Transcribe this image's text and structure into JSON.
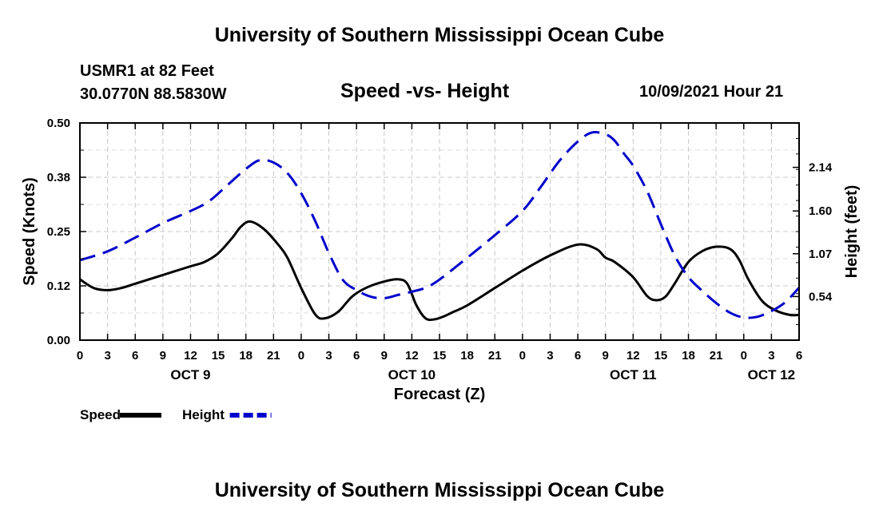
{
  "page": {
    "top_title": "University of Southern Mississippi Ocean Cube",
    "station_name": "USMR1 at 82 Feet",
    "station_coords": "30.0770N  88.5830W",
    "subtitle": "Speed -vs- Height",
    "datetime": "10/09/2021 Hour 21",
    "bottom_title": "University of Southern Mississippi Ocean Cube"
  },
  "chart_data": {
    "type": "line",
    "title": "Speed -vs- Height",
    "xlabel": "Forecast (Z)",
    "ylabel": "Speed (Knots)",
    "y2label": "Height (feet)",
    "xlim": [
      0,
      78
    ],
    "ylim": [
      0,
      0.5
    ],
    "y2lim": [
      0,
      2.69
    ],
    "x_ticks": [
      0,
      3,
      6,
      9,
      12,
      15,
      18,
      21,
      24,
      27,
      30,
      33,
      36,
      39,
      42,
      45,
      48,
      51,
      54,
      57,
      60,
      63,
      66,
      69,
      72,
      75,
      78
    ],
    "x_tick_labels": [
      "0",
      "3",
      "6",
      "9",
      "12",
      "15",
      "18",
      "21",
      "0",
      "3",
      "6",
      "9",
      "12",
      "15",
      "18",
      "21",
      "0",
      "3",
      "6",
      "9",
      "12",
      "15",
      "18",
      "21",
      "0",
      "3",
      "6"
    ],
    "day_labels": [
      {
        "x": 12,
        "label": "OCT 9"
      },
      {
        "x": 36,
        "label": "OCT 10"
      },
      {
        "x": 60,
        "label": "OCT 11"
      },
      {
        "x": 75,
        "label": "OCT 12"
      }
    ],
    "y_ticks": [
      0,
      0.125,
      0.25,
      0.375,
      0.5
    ],
    "y_tick_labels": [
      "0.00",
      "0.12",
      "0.25",
      "0.38",
      "0.50"
    ],
    "y2_ticks": [
      0.54,
      1.07,
      1.6,
      2.14
    ],
    "y2_tick_labels": [
      "0.54",
      "1.07",
      "1.60",
      "2.14"
    ],
    "grid": true,
    "series": [
      {
        "name": "Speed",
        "axis": "left",
        "color": "#000000",
        "dash": "solid",
        "x": [
          0,
          1.5,
          3,
          4.5,
          6,
          9,
          12,
          13.5,
          15,
          16.5,
          17.5,
          18.5,
          20,
          21.5,
          22.5,
          24,
          25.5,
          26.5,
          28,
          29.5,
          31,
          33,
          34.5,
          35.5,
          36.5,
          37.5,
          38.5,
          39.5,
          40.5,
          42,
          45,
          48,
          51,
          54,
          56,
          57,
          58,
          60,
          61.5,
          62.5,
          63.5,
          64.5,
          66,
          67.5,
          69,
          70.5,
          71.5,
          72.5,
          74,
          75.5,
          77,
          78
        ],
        "y": [
          0.14,
          0.12,
          0.115,
          0.12,
          0.13,
          0.15,
          0.17,
          0.18,
          0.2,
          0.235,
          0.262,
          0.273,
          0.255,
          0.22,
          0.19,
          0.12,
          0.06,
          0.05,
          0.065,
          0.1,
          0.12,
          0.135,
          0.14,
          0.13,
          0.08,
          0.05,
          0.048,
          0.055,
          0.065,
          0.08,
          0.12,
          0.16,
          0.195,
          0.22,
          0.21,
          0.19,
          0.18,
          0.145,
          0.102,
          0.092,
          0.1,
          0.13,
          0.18,
          0.205,
          0.215,
          0.21,
          0.185,
          0.14,
          0.09,
          0.068,
          0.058,
          0.058
        ]
      },
      {
        "name": "Height",
        "axis": "right",
        "color": "#0000cc",
        "dash": "dashed",
        "x": [
          0,
          3,
          6,
          9,
          12,
          14,
          16,
          18,
          19.5,
          21,
          22.5,
          24,
          25.5,
          27,
          28.5,
          30,
          31.5,
          33,
          34.5,
          36,
          37.5,
          39,
          42,
          45,
          48,
          50,
          52,
          54,
          55.5,
          57,
          58,
          59,
          60,
          61.5,
          63,
          64.5,
          66,
          67.5,
          69,
          70.5,
          72,
          73.5,
          75,
          76.5,
          78
        ],
        "y": [
          0.99,
          1.1,
          1.27,
          1.45,
          1.6,
          1.72,
          1.92,
          2.12,
          2.23,
          2.2,
          2.07,
          1.82,
          1.48,
          1.08,
          0.75,
          0.62,
          0.54,
          0.52,
          0.56,
          0.6,
          0.65,
          0.75,
          1.02,
          1.3,
          1.6,
          1.9,
          2.22,
          2.46,
          2.57,
          2.55,
          2.47,
          2.31,
          2.16,
          1.85,
          1.44,
          1.05,
          0.78,
          0.61,
          0.46,
          0.34,
          0.28,
          0.29,
          0.36,
          0.47,
          0.65
        ]
      }
    ],
    "legend": [
      {
        "label": "Speed",
        "color": "#000000",
        "dash": "solid"
      },
      {
        "label": "Height",
        "color": "#0000cc",
        "dash": "dashed"
      }
    ],
    "legend_position": "bottom-left"
  }
}
